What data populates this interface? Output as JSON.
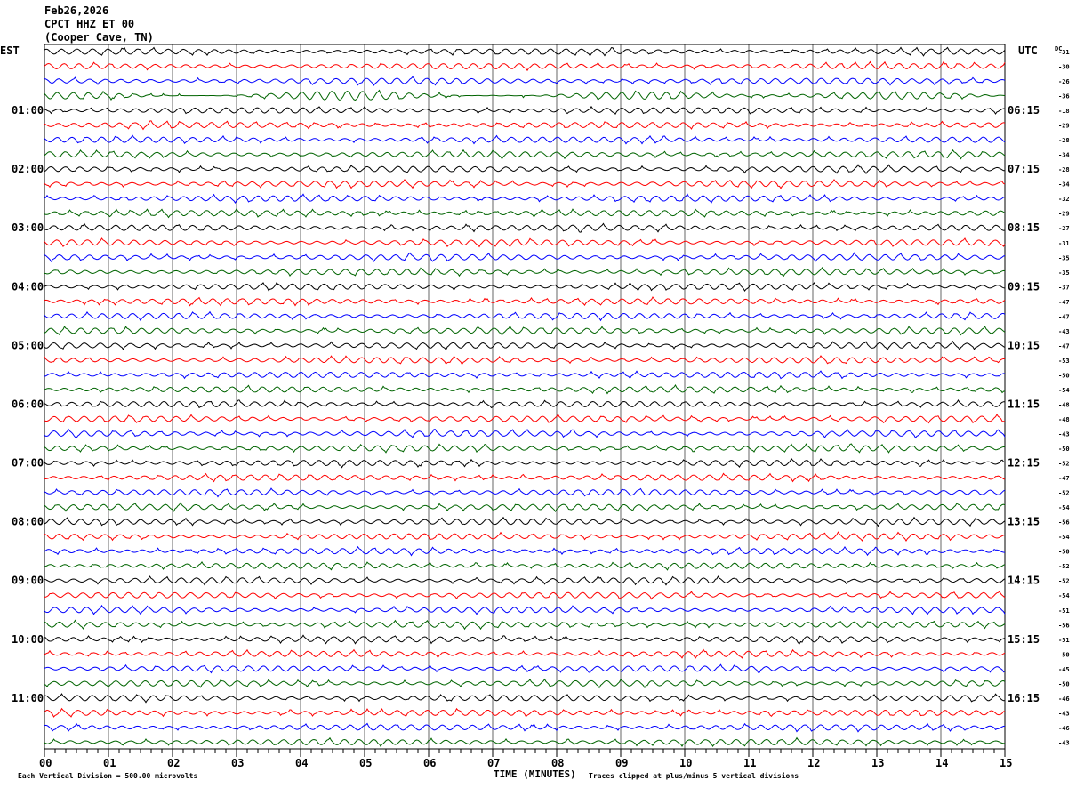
{
  "header": {
    "date": "Feb26,2026",
    "station": "CPCT HHZ ET 00",
    "location": "(Cooper Cave, TN)"
  },
  "left_zone": "EST",
  "right_zone": "UTC",
  "dc_label": "DC",
  "footer": {
    "scale": "Each Vertical Division =  500.00 microvolts",
    "xlabel": "TIME (MINUTES)",
    "clip": "Traces clipped at plus/minus 5 vertical divisions"
  },
  "chart_data": {
    "type": "line",
    "xlabel": "TIME (MINUTES)",
    "xlim": [
      0,
      15
    ],
    "x_ticks": [
      "00",
      "01",
      "02",
      "03",
      "04",
      "05",
      "06",
      "07",
      "08",
      "09",
      "10",
      "11",
      "12",
      "13",
      "14",
      "15"
    ],
    "left_hour_labels": [
      "01:00",
      "02:00",
      "03:00",
      "04:00",
      "05:00",
      "06:00",
      "07:00",
      "08:00",
      "09:00",
      "10:00",
      "11:00"
    ],
    "right_hour_labels": [
      "06:15",
      "07:15",
      "08:15",
      "09:15",
      "10:15",
      "11:15",
      "12:15",
      "13:15",
      "14:15",
      "15:15",
      "16:15"
    ],
    "rows_per_hour": 4,
    "row_colors": [
      "#000000",
      "#ff0000",
      "#0000ff",
      "#006400"
    ],
    "dc_offsets": [
      -31,
      -30,
      -26,
      -36,
      -18,
      -29,
      -28,
      -34,
      -28,
      -34,
      -32,
      -29,
      -27,
      -31,
      -35,
      -35,
      -37,
      -47,
      -47,
      -43,
      -47,
      -53,
      -50,
      -54,
      -48,
      -48,
      -43,
      -50,
      -52,
      -47,
      -52,
      -54,
      -56,
      -54,
      -50,
      -52,
      -52,
      -54,
      -51,
      -56,
      -51,
      -50,
      -45,
      -50,
      -46,
      -43,
      -46,
      -43
    ],
    "grid": true
  }
}
